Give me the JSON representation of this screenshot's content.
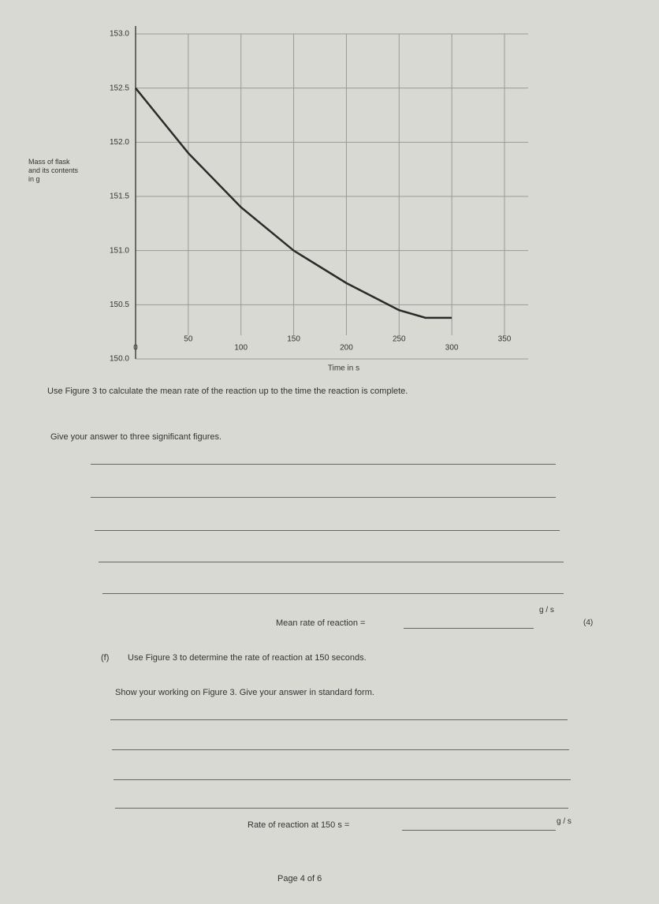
{
  "chart_data": {
    "type": "line",
    "x_label": "Time in s",
    "y_label": "Mass of flask and its contents in g",
    "x": [
      0,
      25,
      50,
      100,
      150,
      200,
      250,
      275,
      300
    ],
    "y": [
      152.5,
      152.2,
      151.9,
      151.4,
      151.0,
      150.7,
      150.45,
      150.38,
      150.38
    ],
    "color": "#2a2a2a",
    "xlim": [
      0,
      350
    ],
    "xticks": [
      0,
      50,
      100,
      150,
      200,
      250,
      300,
      350
    ],
    "ylim": [
      150,
      153
    ],
    "yticks": [
      {
        "value": 150,
        "label": "150.0"
      },
      {
        "value": 150.5,
        "label": "150.5"
      },
      {
        "value": 151,
        "label": "151.0"
      },
      {
        "value": 151.5,
        "label": "151.5"
      },
      {
        "value": 152,
        "label": "152.0"
      },
      {
        "value": 152.5,
        "label": "152.5"
      },
      {
        "value": 153,
        "label": "153.0"
      }
    ],
    "grid": true
  },
  "question_e": {
    "prompt": "Use Figure 3 to calculate the mean rate of the reaction up to the time the reaction is complete.",
    "instruction": "Give your answer to three significant figures.",
    "answer_label": "Mean rate of reaction =",
    "unit": "g / s",
    "marks": "(4)"
  },
  "question_f": {
    "number": "(f)",
    "prompt": "Use Figure 3 to determine the rate of reaction at 150 seconds.",
    "instruction": "Show your working on Figure 3. Give your answer in standard form.",
    "answer_label": "Rate of reaction at 150 s =",
    "unit": "g / s"
  },
  "footer": "Page 4 of 6"
}
